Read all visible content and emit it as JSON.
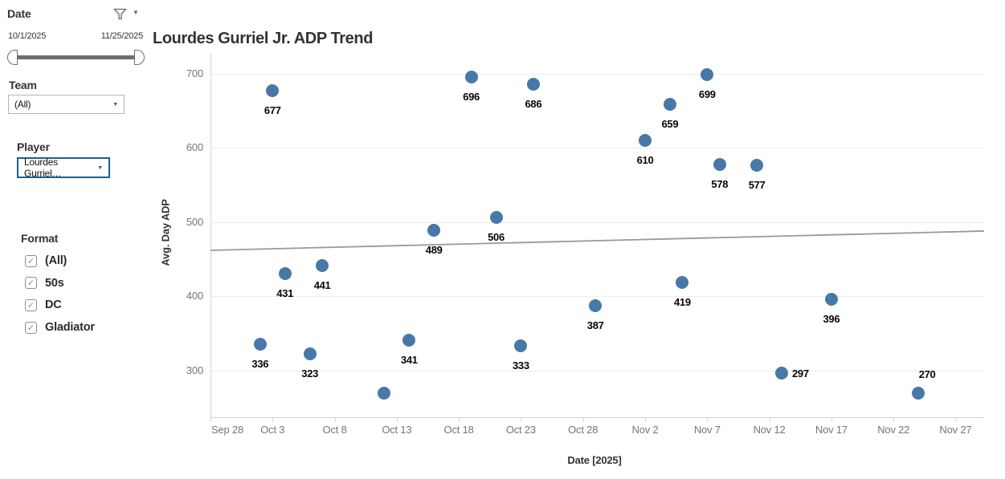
{
  "filters": {
    "date": {
      "label": "Date",
      "start": "10/1/2025",
      "end": "11/25/2025"
    },
    "team": {
      "label": "Team",
      "value": "(All)"
    },
    "player": {
      "label": "Player",
      "value": "Lourdes Gurriel…"
    },
    "format": {
      "label": "Format",
      "options": [
        {
          "label": "(All)",
          "checked": true
        },
        {
          "label": "50s",
          "checked": true
        },
        {
          "label": "DC",
          "checked": true
        },
        {
          "label": "Gladiator",
          "checked": true
        }
      ]
    }
  },
  "glyphs": {
    "caret": "▼",
    "check": "✓"
  },
  "colors": {
    "point": "#4878a8",
    "trend_line": "#999999",
    "accent_focus": "#1d5e93",
    "grid": "#ececec",
    "axis_line": "#d4d4d4",
    "tick_text": "#767676"
  },
  "chart_data": {
    "type": "scatter",
    "title": "Lourdes Gurriel Jr. ADP Trend",
    "xlabel": "Date [2025]",
    "ylabel": "Avg. Day ADP",
    "x_ticks": [
      "Sep 28",
      "Oct 3",
      "Oct 8",
      "Oct 13",
      "Oct 18",
      "Oct 23",
      "Oct 28",
      "Nov 2",
      "Nov 7",
      "Nov 12",
      "Nov 17",
      "Nov 22",
      "Nov 27"
    ],
    "x_tick_days": [
      0,
      5,
      10,
      15,
      20,
      25,
      30,
      35,
      40,
      45,
      50,
      55,
      60
    ],
    "y_ticks": [
      300,
      400,
      500,
      600,
      700
    ],
    "ylim": [
      237,
      727
    ],
    "xlim_days": [
      0,
      62.3
    ],
    "grid": true,
    "legend": false,
    "points": [
      {
        "day": 4,
        "date": "Oct 2",
        "value": 336,
        "label": "336",
        "label_pos": "below"
      },
      {
        "day": 5,
        "date": "Oct 3",
        "value": 677,
        "label": "677",
        "label_pos": "below"
      },
      {
        "day": 6,
        "date": "Oct 4",
        "value": 431,
        "label": "431",
        "label_pos": "below"
      },
      {
        "day": 8,
        "date": "Oct 6",
        "value": 323,
        "label": "323",
        "label_pos": "below"
      },
      {
        "day": 9,
        "date": "Oct 7",
        "value": 441,
        "label": "441",
        "label_pos": "below"
      },
      {
        "day": 14,
        "date": "Oct 12",
        "value": 269,
        "label": "",
        "label_pos": "none"
      },
      {
        "day": 16,
        "date": "Oct 14",
        "value": 341,
        "label": "341",
        "label_pos": "below"
      },
      {
        "day": 18,
        "date": "Oct 16",
        "value": 489,
        "label": "489",
        "label_pos": "below"
      },
      {
        "day": 21,
        "date": "Oct 19",
        "value": 696,
        "label": "696",
        "label_pos": "below"
      },
      {
        "day": 23,
        "date": "Oct 21",
        "value": 506,
        "label": "506",
        "label_pos": "below"
      },
      {
        "day": 25,
        "date": "Oct 23",
        "value": 333,
        "label": "333",
        "label_pos": "below"
      },
      {
        "day": 26,
        "date": "Oct 24",
        "value": 686,
        "label": "686",
        "label_pos": "below"
      },
      {
        "day": 31,
        "date": "Oct 29",
        "value": 387,
        "label": "387",
        "label_pos": "below"
      },
      {
        "day": 35,
        "date": "Nov 2",
        "value": 610,
        "label": "610",
        "label_pos": "below"
      },
      {
        "day": 37,
        "date": "Nov 4",
        "value": 659,
        "label": "659",
        "label_pos": "below"
      },
      {
        "day": 38,
        "date": "Nov 5",
        "value": 419,
        "label": "419",
        "label_pos": "below"
      },
      {
        "day": 40,
        "date": "Nov 7",
        "value": 699,
        "label": "699",
        "label_pos": "below"
      },
      {
        "day": 41,
        "date": "Nov 8",
        "value": 578,
        "label": "578",
        "label_pos": "below"
      },
      {
        "day": 44,
        "date": "Nov 11",
        "value": 577,
        "label": "577",
        "label_pos": "below"
      },
      {
        "day": 46,
        "date": "Nov 13",
        "value": 297,
        "label": "297",
        "label_pos": "right"
      },
      {
        "day": 50,
        "date": "Nov 17",
        "value": 396,
        "label": "396",
        "label_pos": "below"
      },
      {
        "day": 57,
        "date": "Nov 24",
        "value": 270,
        "label": "270",
        "label_pos": "above"
      }
    ],
    "trend": {
      "x_days": [
        0,
        62.3
      ],
      "values": [
        462,
        488
      ]
    }
  }
}
